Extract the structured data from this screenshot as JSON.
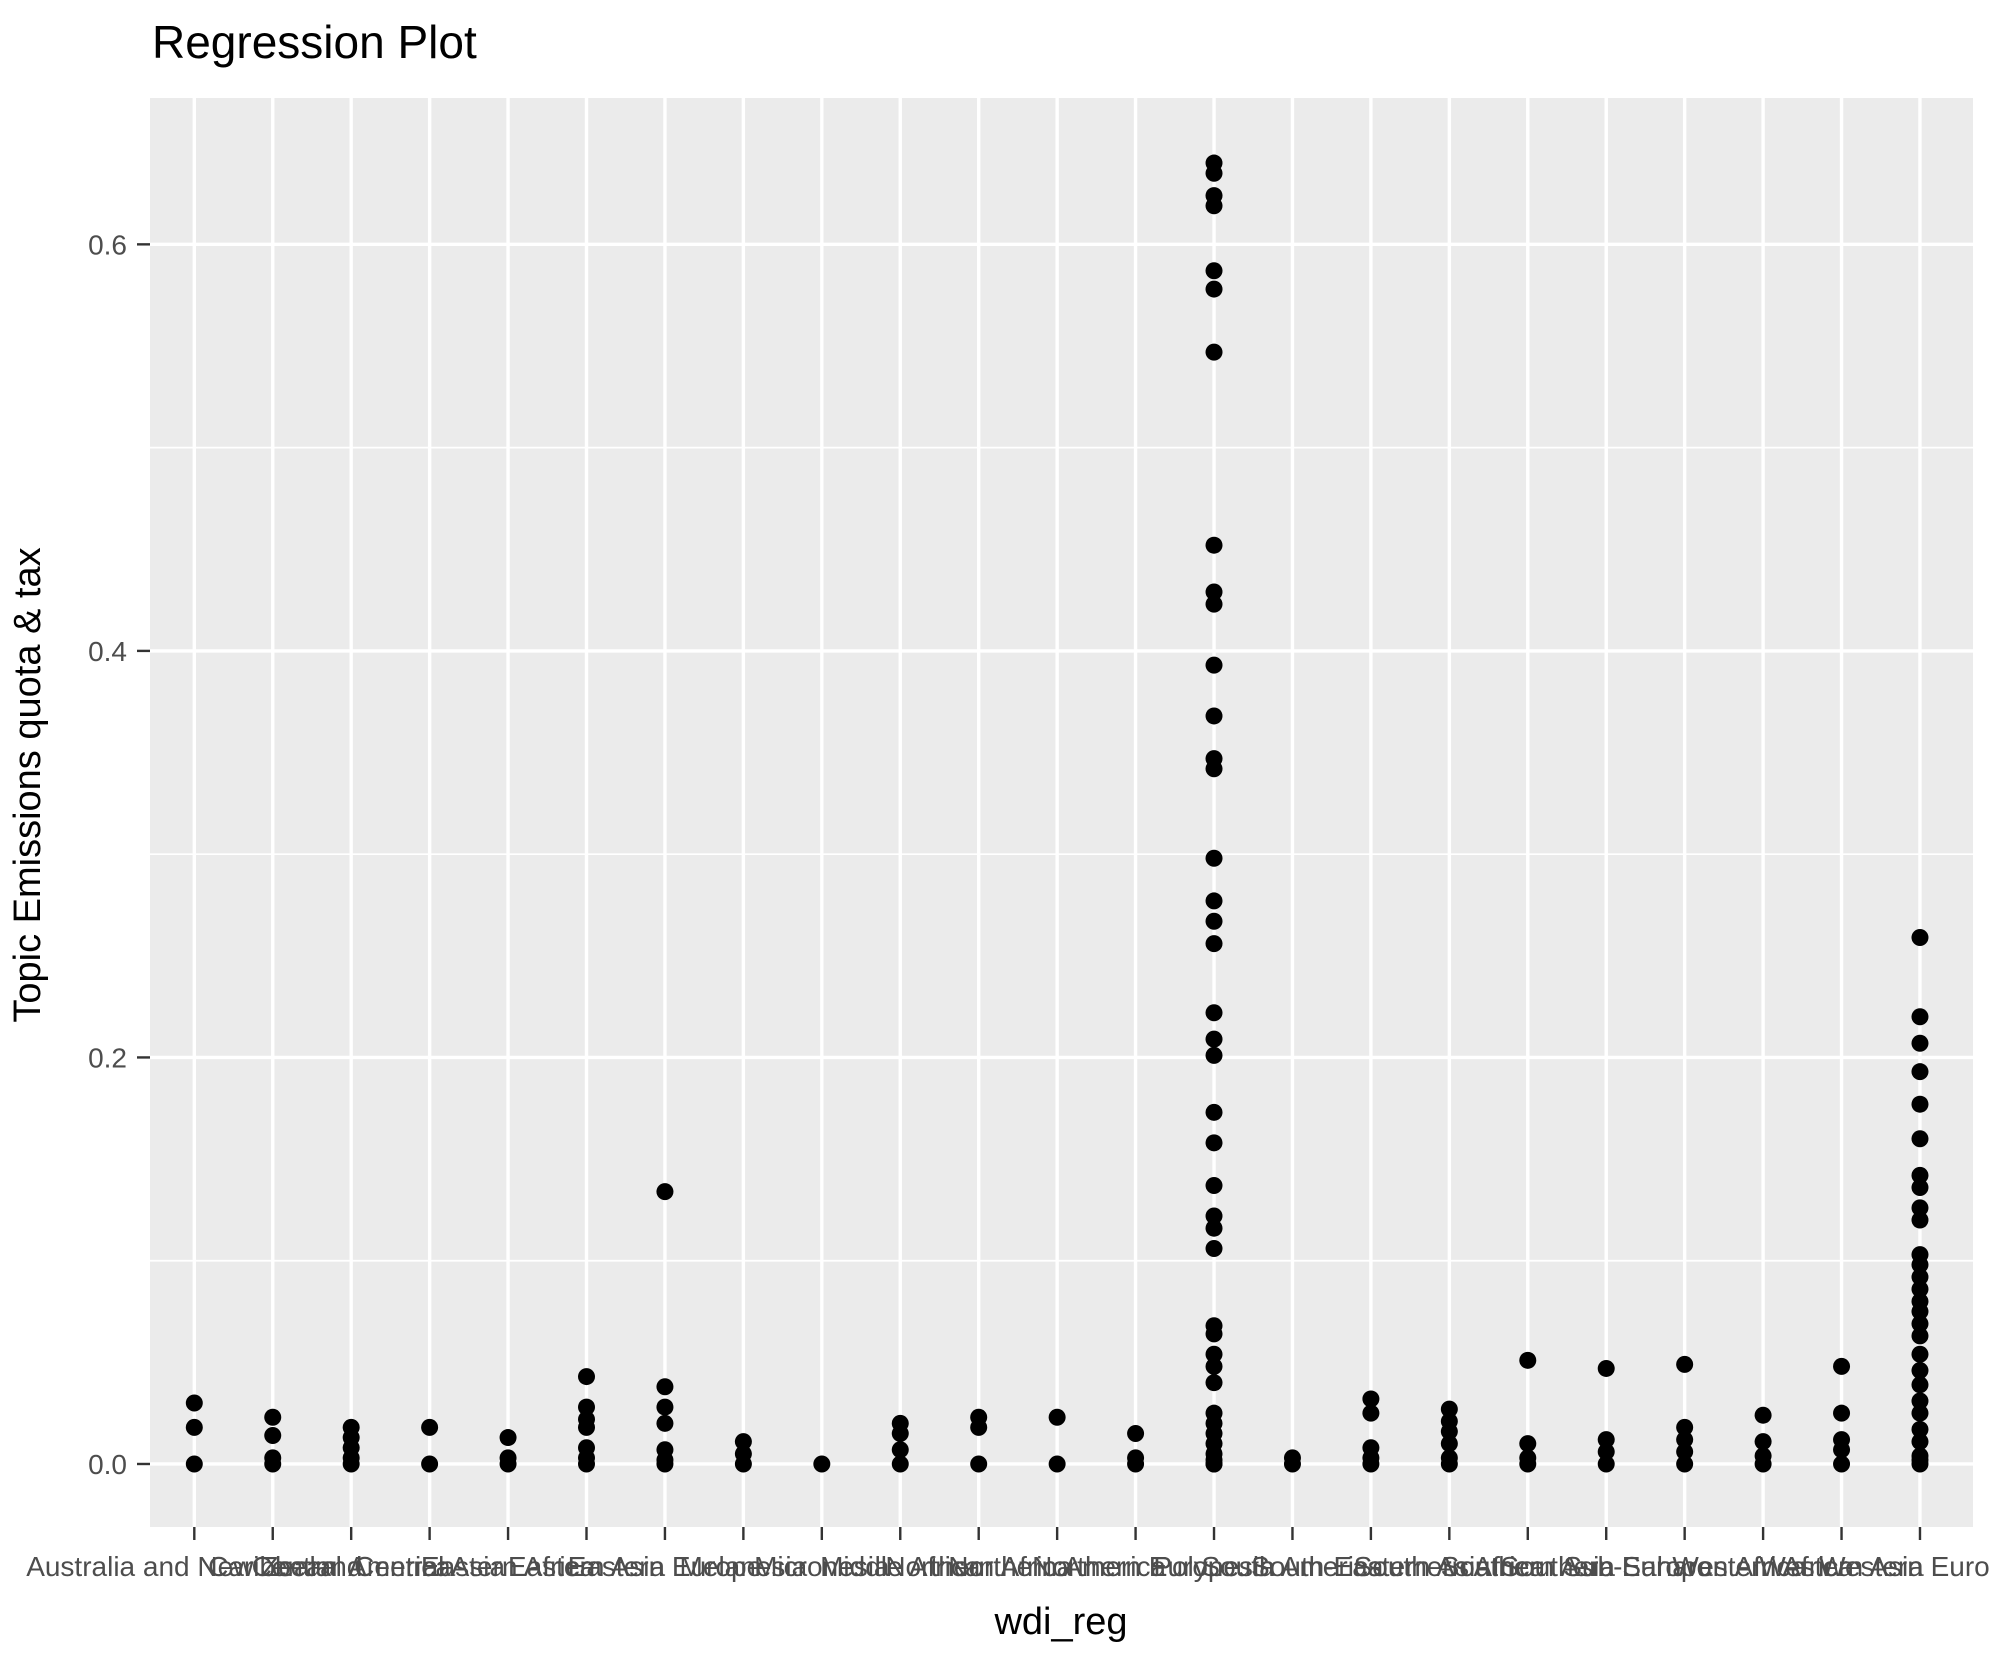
{
  "chart_data": {
    "type": "scatter",
    "title": "Regression Plot",
    "xlabel": "wdi_reg",
    "ylabel": "Topic Emissions quota & tax",
    "y_ticks": [
      0.0,
      0.2,
      0.4,
      0.6
    ],
    "y_tick_labels": [
      "0.0",
      "0.2",
      "0.4",
      "0.6"
    ],
    "y_minor_gridlines": [
      0.1,
      0.3,
      0.5
    ],
    "ylim": [
      -0.031,
      0.672
    ],
    "grid": "on",
    "legend": "none",
    "categories": [
      "Australia and New Zealand",
      "Caribbean",
      "Central America",
      "Central Asia",
      "Eastern Africa",
      "Eastern Asia",
      "Eastern Europe",
      "Melanesia",
      "Micronesia",
      "Middle Africa",
      "Northern Africa",
      "Northern America",
      "Northern Europe",
      "Polynesia",
      "South America",
      "South-Eastern Asia",
      "Southern Africa",
      "Southern Asia",
      "Southern Europe",
      "Sub-Saharan Africa",
      "Western Africa",
      "Western Asia",
      "Western Europe"
    ],
    "series": [
      {
        "name": "Australia and New Zealand",
        "values": [
          0.03,
          0.018,
          0.0
        ]
      },
      {
        "name": "Caribbean",
        "values": [
          0.023,
          0.014,
          0.003,
          0.0
        ]
      },
      {
        "name": "Central America",
        "values": [
          0.018,
          0.013,
          0.008,
          0.003,
          0.0
        ]
      },
      {
        "name": "Central Asia",
        "values": [
          0.018,
          0.0
        ]
      },
      {
        "name": "Eastern Africa",
        "values": [
          0.013,
          0.003,
          0.0
        ]
      },
      {
        "name": "Eastern Asia",
        "values": [
          0.043,
          0.028,
          0.022,
          0.018,
          0.008,
          0.003,
          0.0
        ]
      },
      {
        "name": "Eastern Europe",
        "values": [
          0.134,
          0.038,
          0.028,
          0.02,
          0.007,
          0.002,
          0.0
        ]
      },
      {
        "name": "Melanesia",
        "values": [
          0.011,
          0.005,
          0.0
        ]
      },
      {
        "name": "Micronesia",
        "values": [
          0.0
        ]
      },
      {
        "name": "Middle Africa",
        "values": [
          0.02,
          0.015,
          0.007,
          0.0
        ]
      },
      {
        "name": "Northern Africa",
        "values": [
          0.023,
          0.018,
          0.0
        ]
      },
      {
        "name": "Northern America",
        "values": [
          0.023,
          0.0
        ]
      },
      {
        "name": "Northern Europe",
        "values": [
          0.015,
          0.003,
          0.0
        ]
      },
      {
        "name": "Polynesia",
        "values": [
          0.64,
          0.635,
          0.624,
          0.619,
          0.587,
          0.578,
          0.547,
          0.452,
          0.429,
          0.423,
          0.393,
          0.368,
          0.347,
          0.342,
          0.298,
          0.277,
          0.267,
          0.256,
          0.222,
          0.209,
          0.201,
          0.173,
          0.158,
          0.137,
          0.122,
          0.116,
          0.106,
          0.068,
          0.064,
          0.054,
          0.048,
          0.04,
          0.025,
          0.02,
          0.015,
          0.01,
          0.005,
          0.002,
          0.0,
          0.0
        ]
      },
      {
        "name": "South America",
        "values": [
          0.003,
          0.0
        ]
      },
      {
        "name": "South-Eastern Asia",
        "values": [
          0.032,
          0.025,
          0.008,
          0.003,
          0.0
        ]
      },
      {
        "name": "Southern Africa",
        "values": [
          0.027,
          0.021,
          0.016,
          0.01,
          0.003,
          0.0
        ]
      },
      {
        "name": "Southern Asia",
        "values": [
          0.051,
          0.01,
          0.003,
          0.0
        ]
      },
      {
        "name": "Southern Europe",
        "values": [
          0.047,
          0.012,
          0.006,
          0.0
        ]
      },
      {
        "name": "Sub-Saharan Africa",
        "values": [
          0.049,
          0.018,
          0.012,
          0.006,
          0.0
        ]
      },
      {
        "name": "Western Africa",
        "values": [
          0.024,
          0.011,
          0.004,
          0.0
        ]
      },
      {
        "name": "Western Asia",
        "values": [
          0.048,
          0.025,
          0.012,
          0.007,
          0.0
        ]
      },
      {
        "name": "Western Europe",
        "values": [
          0.259,
          0.22,
          0.207,
          0.193,
          0.177,
          0.16,
          0.142,
          0.136,
          0.126,
          0.12,
          0.103,
          0.098,
          0.092,
          0.086,
          0.08,
          0.075,
          0.069,
          0.063,
          0.054,
          0.046,
          0.039,
          0.031,
          0.025,
          0.017,
          0.011,
          0.004,
          0.002,
          0.0
        ]
      }
    ]
  },
  "colors": {
    "background": "#FFFFFF",
    "panel_background": "#EBEBEB",
    "gridline": "#FFFFFF",
    "point": "#000000",
    "tick_mark": "#333333",
    "tick_label": "#4D4D4D",
    "title": "#000000",
    "axis_title": "#000000"
  }
}
